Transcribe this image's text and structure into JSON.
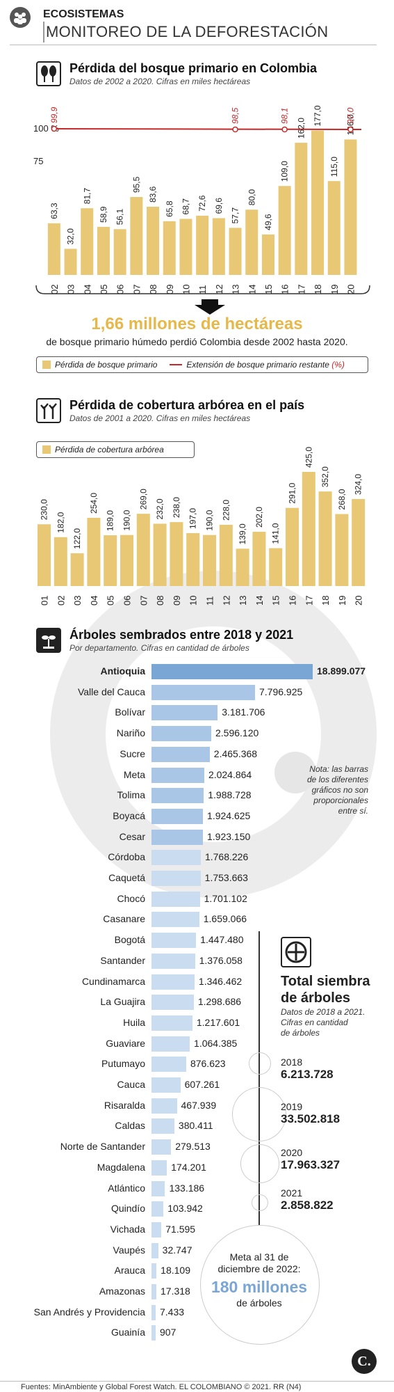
{
  "header": {
    "section": "ECOSISTEMAS",
    "title": "MONITOREO DE LA DEFORESTACIÓN"
  },
  "colors": {
    "bar_gold": "#e8c874",
    "line_red": "#c62828",
    "bar_blue_dark": "#7aa6d6",
    "bar_blue_light": "#c9dcf0",
    "highlight_orange": "#e6b84a"
  },
  "chart1": {
    "title": "Pérdida del bosque primario en Colombia",
    "subtitle": "Datos de 2002 a 2020. Cifras en miles hectáreas",
    "icon": "trees-icon",
    "callout_big": "1,66 millones de hectáreas",
    "callout_text": "de bosque primario húmedo perdió Colombia desde 2002 hasta 2020.",
    "legend_bar": "Pérdida de bosque primario",
    "legend_line": "Extensión de bosque primario restante",
    "legend_line_unit": "(%)"
  },
  "chart2": {
    "title": "Pérdida de cobertura arbórea en el país",
    "subtitle": "Datos de 2001 a 2020. Cifras en miles hectáreas",
    "icon": "dead-trees-icon",
    "legend_bar": "Pérdida de cobertura arbórea"
  },
  "chart3": {
    "title": "Árboles sembrados entre 2018 y 2021",
    "subtitle": "Por departamento. Cifras en cantidad de árboles",
    "icon": "sprout-icon",
    "note": [
      "Nota: las barras",
      "de los diferentes",
      "gráficos no son",
      "proporcionales",
      "entre sí."
    ]
  },
  "totals": {
    "icon": "globe-tree-icon",
    "title": [
      "Total siembra",
      "de árboles"
    ],
    "subtitle": [
      "Datos de 2018 a 2021.",
      "Cifras en cantidad",
      "de árboles"
    ],
    "items": [
      {
        "year": "2018",
        "value": "6.213.728"
      },
      {
        "year": "2019",
        "value": "33.502.818"
      },
      {
        "year": "2020",
        "value": "17.963.327"
      },
      {
        "year": "2021",
        "value": "2.858.822"
      }
    ],
    "goal_text": [
      "Meta al 31 de",
      "diciembre de 2022:"
    ],
    "goal_value": "180 millones",
    "goal_unit": "de árboles"
  },
  "footer": {
    "text": "Fuentes: MinAmbiente y Global Forest Watch. EL COLOMBIANO © 2021. RR (N4)"
  },
  "chart_data": [
    {
      "type": "bar",
      "title": "Pérdida del bosque primario en Colombia",
      "categories": [
        "02",
        "03",
        "04",
        "05",
        "06",
        "07",
        "08",
        "09",
        "10",
        "11",
        "12",
        "13",
        "14",
        "15",
        "16",
        "17",
        "18",
        "19",
        "20"
      ],
      "series": [
        {
          "name": "Pérdida de bosque primario",
          "values": [
            63.3,
            32.0,
            81.7,
            58.9,
            56.1,
            95.5,
            83.6,
            65.8,
            68.7,
            72.6,
            69.6,
            57.7,
            80.0,
            49.6,
            109.0,
            162.0,
            177.0,
            115.0,
            166.0
          ],
          "labels": [
            "63,3",
            "32,0",
            "81,7",
            "58,9",
            "56,1",
            "95,5",
            "83,6",
            "65,8",
            "68,7",
            "72,6",
            "69,6",
            "57,7",
            "80,0",
            "49,6",
            "109,0",
            "162,0",
            "177,0",
            "115,0",
            "166,0"
          ]
        },
        {
          "name": "Extensión de bosque primario restante",
          "type": "line",
          "points": [
            {
              "x": "02",
              "value": 99.9,
              "label": "99,9"
            },
            {
              "x": "13",
              "value": 98.5,
              "label": "98,5"
            },
            {
              "x": "16",
              "value": 98.1,
              "label": "98,1"
            },
            {
              "x": "20",
              "value": 97.0,
              "label": "97,0"
            }
          ]
        }
      ],
      "ytick_labels": [
        "100 %",
        "75"
      ]
    },
    {
      "type": "bar",
      "title": "Pérdida de cobertura arbórea en el país",
      "categories": [
        "01",
        "02",
        "03",
        "04",
        "05",
        "06",
        "07",
        "08",
        "09",
        "10",
        "11",
        "12",
        "13",
        "14",
        "15",
        "16",
        "17",
        "18",
        "19",
        "20"
      ],
      "series": [
        {
          "name": "Pérdida de cobertura arbórea",
          "values": [
            230.0,
            182.0,
            122.0,
            254.0,
            189.0,
            190.0,
            269.0,
            232.0,
            238.0,
            197.0,
            190.0,
            228.0,
            139.0,
            202.0,
            141.0,
            291.0,
            425.0,
            352.0,
            268.0,
            324.0
          ],
          "labels": [
            "230,0",
            "182,0",
            "122,0",
            "254,0",
            "189,0",
            "190,0",
            "269,0",
            "232,0",
            "238,0",
            "197,0",
            "190,0",
            "228,0",
            "139,0",
            "202,0",
            "141,0",
            "291,0",
            "425,0",
            "352,0",
            "268,0",
            "324,0"
          ]
        }
      ]
    },
    {
      "type": "bar",
      "orientation": "horizontal",
      "title": "Árboles sembrados entre 2018 y 2021",
      "categories": [
        "Antioquia",
        "Valle del Cauca",
        "Bolívar",
        "Nariño",
        "Sucre",
        "Meta",
        "Tolima",
        "Boyacá",
        "Cesar",
        "Córdoba",
        "Caquetá",
        "Chocó",
        "Casanare",
        "Bogotá",
        "Santander",
        "Cundinamarca",
        "La Guajira",
        "Huila",
        "Guaviare",
        "Putumayo",
        "Cauca",
        "Risaralda",
        "Caldas",
        "Norte de Santander",
        "Magdalena",
        "Atlántico",
        "Quindío",
        "Vichada",
        "Vaupés",
        "Arauca",
        "Amazonas",
        "San Andrés y Providencia",
        "Guainía"
      ],
      "values": [
        18899077,
        7796925,
        3181706,
        2596120,
        2465368,
        2024864,
        1988728,
        1924625,
        1923150,
        1768226,
        1753663,
        1701102,
        1659066,
        1447480,
        1376058,
        1346462,
        1298686,
        1217601,
        1064385,
        876623,
        607261,
        467939,
        380411,
        279513,
        174201,
        133186,
        103942,
        71595,
        32747,
        18109,
        17318,
        7433,
        907
      ],
      "labels": [
        "18.899.077",
        "7.796.925",
        "3.181.706",
        "2.596.120",
        "2.465.368",
        "2.024.864",
        "1.988.728",
        "1.924.625",
        "1.923.150",
        "1.768.226",
        "1.753.663",
        "1.701.102",
        "1.659.066",
        "1.447.480",
        "1.376.058",
        "1.346.462",
        "1.298.686",
        "1.217.601",
        "1.064.385",
        "876.623",
        "607.261",
        "467.939",
        "380.411",
        "279.513",
        "174.201",
        "133.186",
        "103.942",
        "71.595",
        "32.747",
        "18.109",
        "17.318",
        "7.433",
        "907"
      ]
    }
  ]
}
